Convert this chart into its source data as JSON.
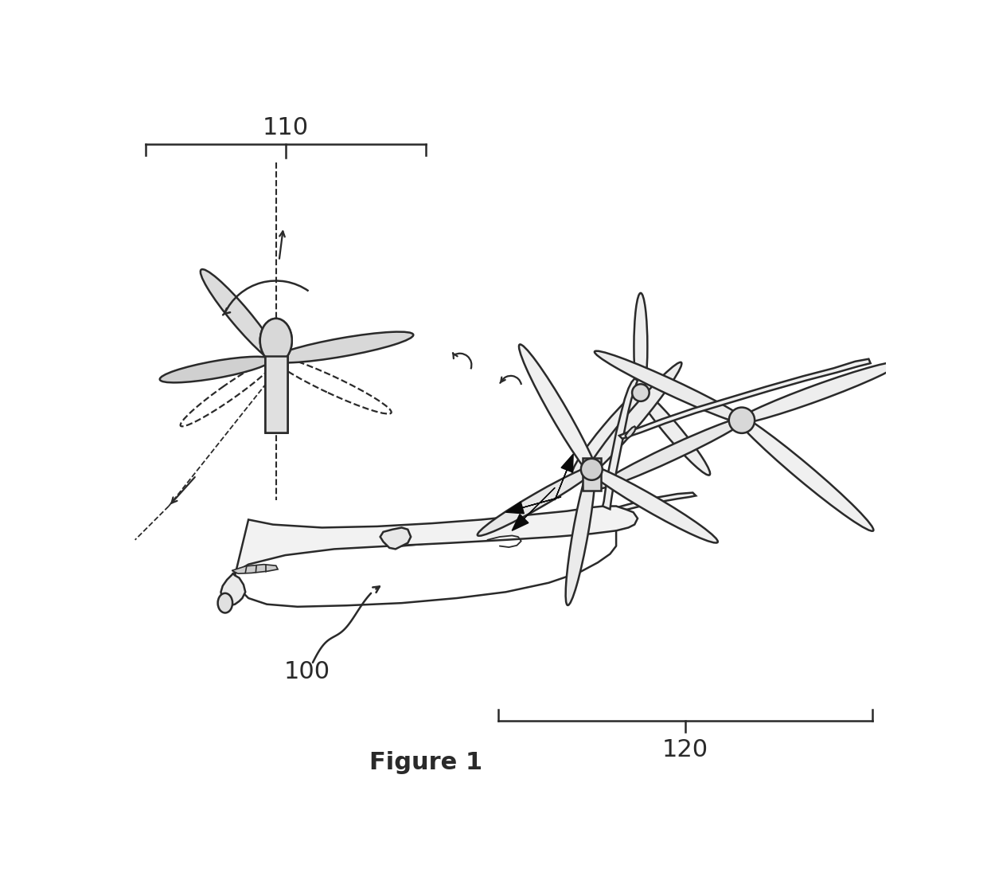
{
  "bg_color": "#ffffff",
  "line_color": "#2a2a2a",
  "label_110": "110",
  "label_120": "120",
  "label_100": "100",
  "fig_label": "Figure 1",
  "figsize": [
    12.4,
    11.25
  ],
  "dpi": 100,
  "lw_thin": 1.3,
  "lw_med": 1.8,
  "lw_thick": 2.2
}
